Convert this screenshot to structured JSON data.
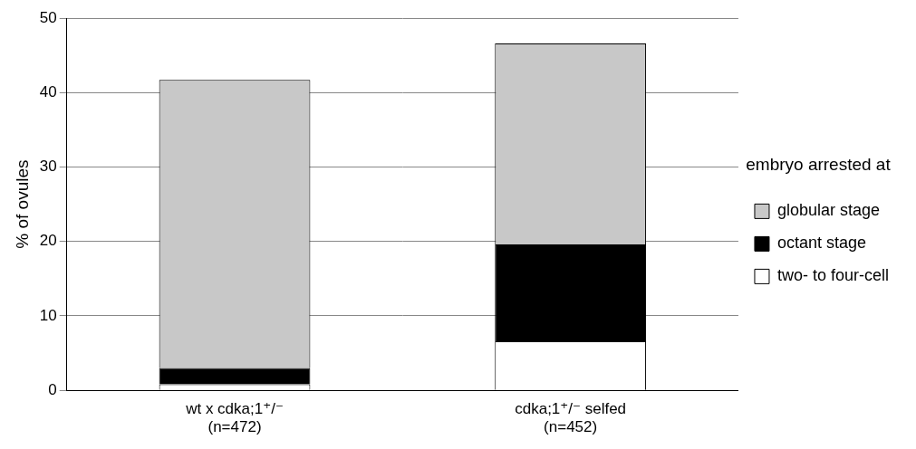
{
  "chart_data": {
    "type": "bar",
    "stacked": true,
    "y_label": "% of ovules",
    "legend_title": "embryo arrested at",
    "legend": "right",
    "categories": [
      [
        "wt x cdka;1⁺/⁻",
        "(n=472)"
      ],
      [
        "cdka;1⁺/⁻ selfed",
        "(n=452)"
      ]
    ],
    "series": [
      {
        "name": "two- to four-cell",
        "color": "#ffffff",
        "values": [
          0.8,
          6.6
        ]
      },
      {
        "name": "octant stage",
        "color": "#000000",
        "values": [
          2.2,
          13.0
        ]
      },
      {
        "name": "globular stage",
        "color": "#c8c8c8",
        "values": [
          38.7,
          27.0
        ]
      }
    ],
    "ylim": [
      0,
      50
    ],
    "yticks": [
      0,
      10,
      20,
      30,
      40,
      50
    ],
    "grid": true
  }
}
